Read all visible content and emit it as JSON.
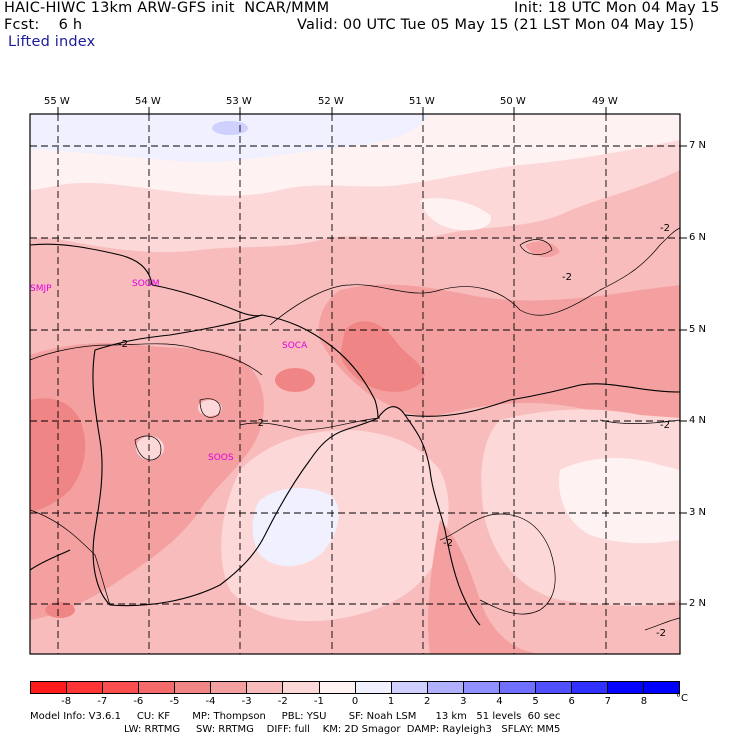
{
  "header": {
    "line1_left": "HAIC-HIWC 13km ARW-GFS init  NCAR/MMM",
    "line2_left": "Fcst:    6 h",
    "init": "Init: 18 UTC Mon 04 May 15",
    "valid": "Valid: 00 UTC Tue 05 May 15 (21 LST Mon 04 May 15)",
    "field": "Lifted index"
  },
  "map": {
    "lon_labels": [
      "55 W",
      "54 W",
      "53 W",
      "52 W",
      "51 W",
      "50 W",
      "49 W"
    ],
    "lat_labels": [
      "7 N",
      "6 N",
      "5 N",
      "4 N",
      "3 N",
      "2 N"
    ],
    "stations": [
      "SMJP",
      "SOGM",
      "SOCA",
      "SOOS"
    ],
    "contour_labels": [
      "-2",
      "-2",
      "-2",
      "-2",
      "-2",
      "-2",
      "-2"
    ]
  },
  "colorbar": {
    "ticks": [
      "-8",
      "-7",
      "-6",
      "-5",
      "-4",
      "-3",
      "-2",
      "-1",
      "0",
      "1",
      "2",
      "3",
      "4",
      "5",
      "6",
      "7",
      "8"
    ],
    "unit": "°C",
    "colors": [
      "#ff1b1b",
      "#ff3535",
      "#fb4f4f",
      "#f56a6a",
      "#f08585",
      "#f4a0a0",
      "#f9bcbc",
      "#fcd8d8",
      "#fff2f2",
      "#f0f0ff",
      "#d0d0ff",
      "#b0b0ff",
      "#9090ff",
      "#7070ff",
      "#5050ff",
      "#3030ff",
      "#0505ff",
      "#0000ff"
    ]
  },
  "footer": {
    "line1": "Model Info: V3.6.1     CU: KF       MP: Thompson     PBL: YSU       SF: Noah LSM      13 km   51 levels  60 sec",
    "line2": "LW: RRTMG     SW: RRTMG    DIFF: full    KM: 2D Smagor  DAMP: Rayleigh3   SFLAY: MM5"
  }
}
